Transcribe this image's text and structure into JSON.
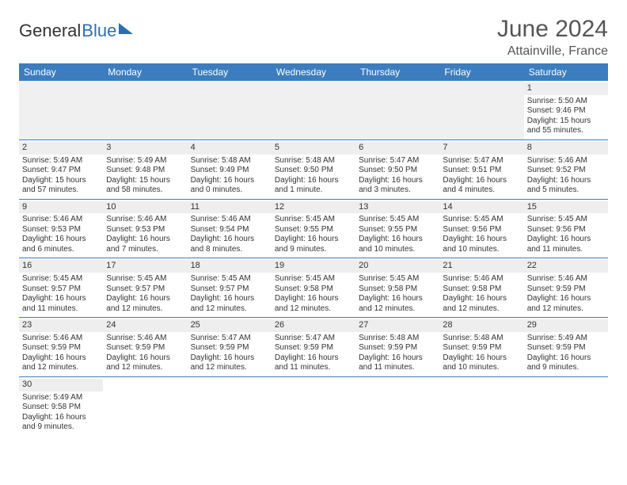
{
  "logo": {
    "text1": "General",
    "text2": "Blue"
  },
  "title": "June 2024",
  "location": "Attainville, France",
  "colors": {
    "header_bg": "#3b7dbf",
    "header_text": "#ffffff",
    "accent": "#2a6fb5",
    "row_divider": "#3b7dbf",
    "daynum_bg": "#eeeeee",
    "text": "#333333"
  },
  "typography": {
    "title_fontsize": 30,
    "location_fontsize": 16,
    "dayhead_fontsize": 12,
    "cell_fontsize": 10,
    "logo_fontsize": 22
  },
  "day_headers": [
    "Sunday",
    "Monday",
    "Tuesday",
    "Wednesday",
    "Thursday",
    "Friday",
    "Saturday"
  ],
  "weeks": [
    [
      null,
      null,
      null,
      null,
      null,
      null,
      {
        "n": "1",
        "sr": "Sunrise: 5:50 AM",
        "ss": "Sunset: 9:46 PM",
        "dl": "Daylight: 15 hours and 55 minutes."
      }
    ],
    [
      {
        "n": "2",
        "sr": "Sunrise: 5:49 AM",
        "ss": "Sunset: 9:47 PM",
        "dl": "Daylight: 15 hours and 57 minutes."
      },
      {
        "n": "3",
        "sr": "Sunrise: 5:49 AM",
        "ss": "Sunset: 9:48 PM",
        "dl": "Daylight: 15 hours and 58 minutes."
      },
      {
        "n": "4",
        "sr": "Sunrise: 5:48 AM",
        "ss": "Sunset: 9:49 PM",
        "dl": "Daylight: 16 hours and 0 minutes."
      },
      {
        "n": "5",
        "sr": "Sunrise: 5:48 AM",
        "ss": "Sunset: 9:50 PM",
        "dl": "Daylight: 16 hours and 1 minute."
      },
      {
        "n": "6",
        "sr": "Sunrise: 5:47 AM",
        "ss": "Sunset: 9:50 PM",
        "dl": "Daylight: 16 hours and 3 minutes."
      },
      {
        "n": "7",
        "sr": "Sunrise: 5:47 AM",
        "ss": "Sunset: 9:51 PM",
        "dl": "Daylight: 16 hours and 4 minutes."
      },
      {
        "n": "8",
        "sr": "Sunrise: 5:46 AM",
        "ss": "Sunset: 9:52 PM",
        "dl": "Daylight: 16 hours and 5 minutes."
      }
    ],
    [
      {
        "n": "9",
        "sr": "Sunrise: 5:46 AM",
        "ss": "Sunset: 9:53 PM",
        "dl": "Daylight: 16 hours and 6 minutes."
      },
      {
        "n": "10",
        "sr": "Sunrise: 5:46 AM",
        "ss": "Sunset: 9:53 PM",
        "dl": "Daylight: 16 hours and 7 minutes."
      },
      {
        "n": "11",
        "sr": "Sunrise: 5:46 AM",
        "ss": "Sunset: 9:54 PM",
        "dl": "Daylight: 16 hours and 8 minutes."
      },
      {
        "n": "12",
        "sr": "Sunrise: 5:45 AM",
        "ss": "Sunset: 9:55 PM",
        "dl": "Daylight: 16 hours and 9 minutes."
      },
      {
        "n": "13",
        "sr": "Sunrise: 5:45 AM",
        "ss": "Sunset: 9:55 PM",
        "dl": "Daylight: 16 hours and 10 minutes."
      },
      {
        "n": "14",
        "sr": "Sunrise: 5:45 AM",
        "ss": "Sunset: 9:56 PM",
        "dl": "Daylight: 16 hours and 10 minutes."
      },
      {
        "n": "15",
        "sr": "Sunrise: 5:45 AM",
        "ss": "Sunset: 9:56 PM",
        "dl": "Daylight: 16 hours and 11 minutes."
      }
    ],
    [
      {
        "n": "16",
        "sr": "Sunrise: 5:45 AM",
        "ss": "Sunset: 9:57 PM",
        "dl": "Daylight: 16 hours and 11 minutes."
      },
      {
        "n": "17",
        "sr": "Sunrise: 5:45 AM",
        "ss": "Sunset: 9:57 PM",
        "dl": "Daylight: 16 hours and 12 minutes."
      },
      {
        "n": "18",
        "sr": "Sunrise: 5:45 AM",
        "ss": "Sunset: 9:57 PM",
        "dl": "Daylight: 16 hours and 12 minutes."
      },
      {
        "n": "19",
        "sr": "Sunrise: 5:45 AM",
        "ss": "Sunset: 9:58 PM",
        "dl": "Daylight: 16 hours and 12 minutes."
      },
      {
        "n": "20",
        "sr": "Sunrise: 5:45 AM",
        "ss": "Sunset: 9:58 PM",
        "dl": "Daylight: 16 hours and 12 minutes."
      },
      {
        "n": "21",
        "sr": "Sunrise: 5:46 AM",
        "ss": "Sunset: 9:58 PM",
        "dl": "Daylight: 16 hours and 12 minutes."
      },
      {
        "n": "22",
        "sr": "Sunrise: 5:46 AM",
        "ss": "Sunset: 9:59 PM",
        "dl": "Daylight: 16 hours and 12 minutes."
      }
    ],
    [
      {
        "n": "23",
        "sr": "Sunrise: 5:46 AM",
        "ss": "Sunset: 9:59 PM",
        "dl": "Daylight: 16 hours and 12 minutes."
      },
      {
        "n": "24",
        "sr": "Sunrise: 5:46 AM",
        "ss": "Sunset: 9:59 PM",
        "dl": "Daylight: 16 hours and 12 minutes."
      },
      {
        "n": "25",
        "sr": "Sunrise: 5:47 AM",
        "ss": "Sunset: 9:59 PM",
        "dl": "Daylight: 16 hours and 12 minutes."
      },
      {
        "n": "26",
        "sr": "Sunrise: 5:47 AM",
        "ss": "Sunset: 9:59 PM",
        "dl": "Daylight: 16 hours and 11 minutes."
      },
      {
        "n": "27",
        "sr": "Sunrise: 5:48 AM",
        "ss": "Sunset: 9:59 PM",
        "dl": "Daylight: 16 hours and 11 minutes."
      },
      {
        "n": "28",
        "sr": "Sunrise: 5:48 AM",
        "ss": "Sunset: 9:59 PM",
        "dl": "Daylight: 16 hours and 10 minutes."
      },
      {
        "n": "29",
        "sr": "Sunrise: 5:49 AM",
        "ss": "Sunset: 9:59 PM",
        "dl": "Daylight: 16 hours and 9 minutes."
      }
    ],
    [
      {
        "n": "30",
        "sr": "Sunrise: 5:49 AM",
        "ss": "Sunset: 9:58 PM",
        "dl": "Daylight: 16 hours and 9 minutes."
      },
      null,
      null,
      null,
      null,
      null,
      null
    ]
  ]
}
